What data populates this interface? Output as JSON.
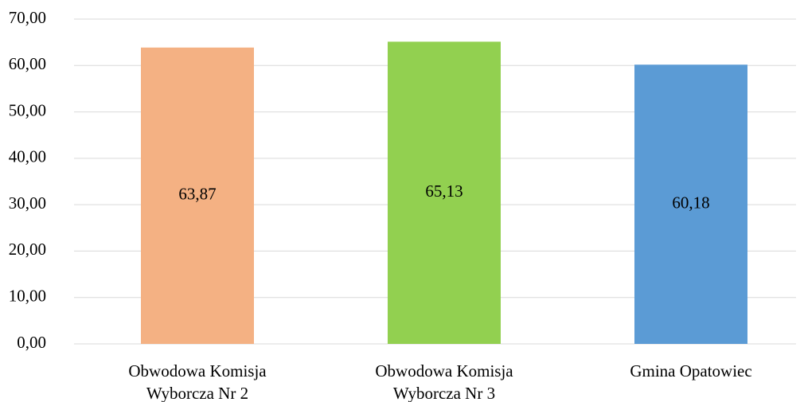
{
  "chart_data": {
    "type": "bar",
    "categories": [
      "Obwodowa Komisja Wyborcza Nr 2",
      "Obwodowa Komisja Wyborcza Nr 3",
      "Gmina Opatowiec"
    ],
    "values": [
      63.87,
      65.13,
      60.18
    ],
    "value_labels": [
      "63,87",
      "65,13",
      "60,18"
    ],
    "colors": [
      "#f4b183",
      "#92d050",
      "#5b9bd5"
    ],
    "ylim": [
      0,
      70
    ],
    "yticks": [
      {
        "value": 0,
        "label": "0,00"
      },
      {
        "value": 10,
        "label": "10,00"
      },
      {
        "value": 20,
        "label": "20,00"
      },
      {
        "value": 30,
        "label": "30,00"
      },
      {
        "value": 40,
        "label": "40,00"
      },
      {
        "value": 50,
        "label": "50,00"
      },
      {
        "value": 60,
        "label": "60,00"
      },
      {
        "value": 70,
        "label": "70,00"
      }
    ],
    "grid": true
  }
}
